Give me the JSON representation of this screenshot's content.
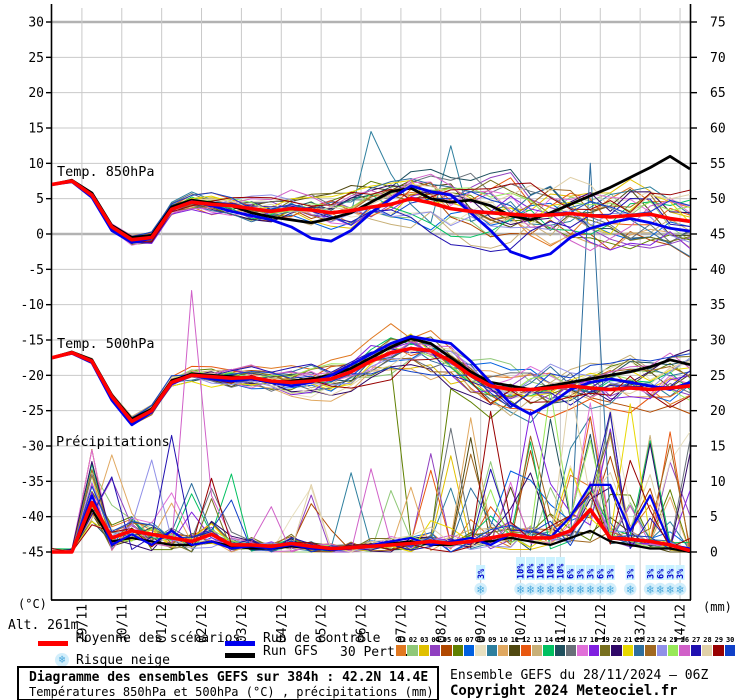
{
  "header": {
    "alt_label": "Alt. 261m"
  },
  "axes": {
    "unit_left": "(°C)",
    "unit_right": "(mm)",
    "temp_ticks": [
      30,
      25,
      20,
      15,
      10,
      5,
      0,
      -5,
      -10,
      -15,
      -20,
      -25,
      -30,
      -35,
      -40,
      -45
    ],
    "precip_ticks": [
      75,
      70,
      65,
      60,
      55,
      50,
      45,
      40,
      35,
      30,
      25,
      20,
      15,
      10,
      5,
      0
    ],
    "dates": [
      "29/11",
      "30/11",
      "01/12",
      "02/12",
      "03/12",
      "04/12",
      "05/12",
      "06/12",
      "07/12",
      "08/12",
      "09/12",
      "10/12",
      "11/12",
      "12/12",
      "13/12",
      "14/12"
    ]
  },
  "panels": {
    "t850": "Temp. 850hPa",
    "t500": "Temp. 500hPa",
    "precip": "Précipitations"
  },
  "legend": {
    "mean": {
      "label": "Moyenne des scénarios",
      "color": "#ff0000"
    },
    "control": {
      "label": "Run de contrôle",
      "color": "#0000ee"
    },
    "gfs": {
      "label": "Run GFS",
      "color": "#000000"
    },
    "perts": {
      "label": "30 Perts."
    },
    "snow": {
      "label": "Risque neige"
    }
  },
  "snow_risk": [
    {
      "hour": 258,
      "pct": "3%"
    },
    {
      "hour": 282,
      "pct": "10%"
    },
    {
      "hour": 288,
      "pct": "10%"
    },
    {
      "hour": 294,
      "pct": "10%"
    },
    {
      "hour": 300,
      "pct": "10%"
    },
    {
      "hour": 306,
      "pct": "10%"
    },
    {
      "hour": 312,
      "pct": "6%"
    },
    {
      "hour": 318,
      "pct": "3%"
    },
    {
      "hour": 324,
      "pct": "3%"
    },
    {
      "hour": 330,
      "pct": "6%"
    },
    {
      "hour": 336,
      "pct": "3%"
    },
    {
      "hour": 348,
      "pct": "3%"
    },
    {
      "hour": 360,
      "pct": "3%"
    },
    {
      "hour": 366,
      "pct": "6%"
    },
    {
      "hour": 372,
      "pct": "3%"
    },
    {
      "hour": 378,
      "pct": "3%"
    }
  ],
  "perturbations": {
    "numbers": [
      "01",
      "02",
      "03",
      "04",
      "05",
      "06",
      "07",
      "08",
      "09",
      "10",
      "11",
      "12",
      "13",
      "14",
      "15",
      "16",
      "17",
      "18",
      "19",
      "20",
      "21",
      "22",
      "23",
      "24",
      "25",
      "26",
      "27",
      "28",
      "29",
      "30"
    ],
    "colors": [
      "#e07820",
      "#90c878",
      "#e0c000",
      "#9040c0",
      "#b04800",
      "#608000",
      "#0060e0",
      "#e8e0c0",
      "#2e7f9e",
      "#e0a860",
      "#504810",
      "#e85810",
      "#c8b078",
      "#00c060",
      "#1f505e",
      "#687078",
      "#e070d8",
      "#8020e0",
      "#787020",
      "#300868",
      "#e8d800",
      "#2e6e9e",
      "#a06820",
      "#9090e8",
      "#98e858",
      "#d060c8",
      "#2010b0",
      "#e0d0a8",
      "#980000",
      "#1040c8"
    ]
  },
  "title_box": {
    "line1": "Diagramme des ensembles GEFS sur 384h : 42.2N 14.4E",
    "line2": "Températures 850hPa et 500hPa (°C) , précipitations (mm)"
  },
  "credit": {
    "line1": "Ensemble GEFS du 28/11/2024 – 06Z",
    "line2": "Copyright 2024 Meteociel.fr"
  },
  "chart_data": {
    "type": "line",
    "x_unit": "forecast_hour",
    "x_start": 0,
    "x_step": 12,
    "run": "GEFS 28/11/2024 06Z",
    "location": "42.2N 14.4E",
    "ylim_temp": [
      -45,
      30
    ],
    "ylim_precip": [
      0,
      75
    ],
    "grid": true,
    "series": {
      "t850_mean": [
        7.0,
        7.5,
        5.5,
        1.0,
        -0.8,
        -0.5,
        3.5,
        4.5,
        4.2,
        4.0,
        3.6,
        3.2,
        3.6,
        3.4,
        3.0,
        3.3,
        3.8,
        4.2,
        5.0,
        4.4,
        3.6,
        3.2,
        3.0,
        2.8,
        2.6,
        2.7,
        2.9,
        2.6,
        2.4,
        2.6,
        2.8,
        2.2,
        1.8
      ],
      "t850_control": [
        7.0,
        7.4,
        5.2,
        0.5,
        -1.2,
        -0.6,
        3.4,
        4.6,
        4.0,
        3.2,
        2.6,
        2.0,
        1.0,
        -0.6,
        -1.0,
        0.5,
        3.0,
        5.0,
        6.8,
        6.0,
        5.5,
        3.0,
        0.5,
        -2.5,
        -3.5,
        -2.8,
        -0.5,
        0.8,
        1.6,
        2.2,
        1.6,
        0.8,
        0.4
      ],
      "t850_gfs": [
        7.0,
        7.6,
        5.8,
        1.2,
        -0.5,
        -0.2,
        3.8,
        4.8,
        4.4,
        4.0,
        3.0,
        2.4,
        2.0,
        1.6,
        2.2,
        3.0,
        4.5,
        6.0,
        6.5,
        5.0,
        4.5,
        4.8,
        4.0,
        2.6,
        2.0,
        3.0,
        4.2,
        5.4,
        6.6,
        8.0,
        9.4,
        11.0,
        9.2
      ],
      "t500_mean": [
        -17.5,
        -16.8,
        -18.0,
        -23.0,
        -26.5,
        -25.0,
        -21.0,
        -20.0,
        -20.2,
        -20.4,
        -20.3,
        -20.8,
        -21.0,
        -20.8,
        -20.5,
        -19.5,
        -18.0,
        -16.8,
        -16.2,
        -16.5,
        -18.0,
        -20.0,
        -21.5,
        -22.0,
        -22.0,
        -21.8,
        -21.5,
        -21.8,
        -22.0,
        -21.8,
        -22.0,
        -21.8,
        -21.5
      ],
      "t500_control": [
        -17.5,
        -16.9,
        -18.2,
        -23.5,
        -27.0,
        -25.2,
        -21.2,
        -20.0,
        -20.5,
        -20.8,
        -20.5,
        -21.0,
        -21.5,
        -21.0,
        -20.0,
        -18.5,
        -17.0,
        -15.5,
        -14.5,
        -15.0,
        -15.5,
        -18.0,
        -21.0,
        -24.0,
        -25.5,
        -24.0,
        -22.0,
        -21.0,
        -20.5,
        -21.0,
        -21.5,
        -22.0,
        -21.0
      ],
      "t500_gfs": [
        -17.5,
        -16.7,
        -17.8,
        -22.8,
        -26.2,
        -24.8,
        -20.8,
        -19.8,
        -20.0,
        -20.2,
        -20.5,
        -21.0,
        -20.8,
        -20.5,
        -20.0,
        -19.0,
        -17.5,
        -16.0,
        -14.8,
        -15.5,
        -17.5,
        -19.5,
        -21.0,
        -21.5,
        -22.0,
        -21.5,
        -21.0,
        -20.5,
        -20.0,
        -19.5,
        -18.8,
        -17.8,
        -18.5
      ],
      "precip_mean": [
        0,
        0,
        7.0,
        2.0,
        3.0,
        2.5,
        2.0,
        1.5,
        2.5,
        1.0,
        1.0,
        0.8,
        1.2,
        0.8,
        0.5,
        0.6,
        0.8,
        1.0,
        1.2,
        1.5,
        1.2,
        1.5,
        2.0,
        2.5,
        2.0,
        2.0,
        3.0,
        6.0,
        2.0,
        1.8,
        1.5,
        1.0,
        0.2
      ],
      "precip_control": [
        0,
        0,
        8.0,
        1.0,
        2.5,
        1.0,
        3.0,
        1.0,
        1.5,
        0.5,
        0.8,
        0.5,
        1.0,
        0.5,
        0.3,
        0.5,
        1.0,
        1.5,
        2.0,
        1.0,
        1.5,
        2.0,
        1.0,
        2.5,
        2.0,
        2.0,
        5.0,
        9.5,
        9.5,
        3.0,
        8.0,
        1.0,
        0.5
      ],
      "precip_gfs": [
        0,
        0,
        6.0,
        1.5,
        2.0,
        1.5,
        1.0,
        1.0,
        1.5,
        0.8,
        0.5,
        0.5,
        0.8,
        0.5,
        0.3,
        0.5,
        0.8,
        1.2,
        1.5,
        1.0,
        1.0,
        1.5,
        1.5,
        2.0,
        1.5,
        1.0,
        2.0,
        3.0,
        1.5,
        1.0,
        0.5,
        0.5,
        0
      ],
      "members_note": "30 GEFS perturbation members drawn as thin lines (colors in perturbations.colors); spread grows from ±0.5°C at h0 to ≈±8°C at h384; notable outliers: member 09 850hPa spike to +14.5°C at h192; member 06 500hPa plunge to -43°C near h216-228; member 26 precip spike 37mm at h84; member 22 precip spike 55mm at h324; member 25 precip 23mm at h300; member 12 precip 17mm at h372; all members precip burst 4-15mm at h24-30"
    }
  }
}
